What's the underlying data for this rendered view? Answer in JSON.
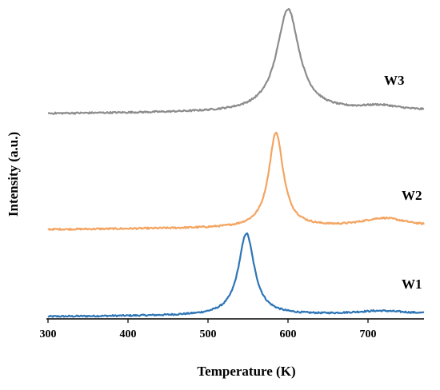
{
  "chart_data": {
    "type": "line",
    "title": "",
    "xlabel": "Temperature (K)",
    "ylabel": "Intensity (a.u.)",
    "xlim": [
      300,
      770
    ],
    "x_ticks": [
      300,
      400,
      500,
      600,
      700
    ],
    "y_ticks_shown": false,
    "grid": false,
    "legend": "none (series labeled inline at right)",
    "series": [
      {
        "name": "W1",
        "color": "#2e75b6",
        "baseline": 0.12,
        "peaks": [
          {
            "center": 548,
            "height": 3.2,
            "width": 12
          },
          {
            "center": 715,
            "height": 0.13,
            "width": 40
          }
        ]
      },
      {
        "name": "W2",
        "color": "#f4a460",
        "baseline": 0.12,
        "peaks": [
          {
            "center": 585,
            "height": 3.6,
            "width": 11
          },
          {
            "center": 720,
            "height": 0.33,
            "width": 35
          }
        ]
      },
      {
        "name": "W3",
        "color": "#8c8c8c",
        "baseline": 0.12,
        "peaks": [
          {
            "center": 600,
            "height": 3.9,
            "width": 17
          },
          {
            "center": 715,
            "height": 0.18,
            "width": 30
          }
        ]
      }
    ]
  }
}
